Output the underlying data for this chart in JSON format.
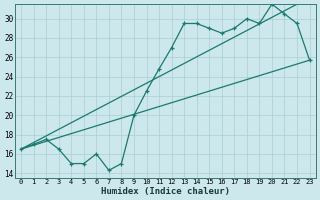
{
  "xlabel": "Humidex (Indice chaleur)",
  "bg_color": "#cce8ed",
  "grid_color": "#aacdd4",
  "line_color": "#1a7a6e",
  "xlim": [
    -0.5,
    23.5
  ],
  "ylim": [
    13.5,
    31.5
  ],
  "xticks": [
    0,
    1,
    2,
    3,
    4,
    5,
    6,
    7,
    8,
    9,
    10,
    11,
    12,
    13,
    14,
    15,
    16,
    17,
    18,
    19,
    20,
    21,
    22,
    23
  ],
  "yticks": [
    14,
    16,
    18,
    20,
    22,
    24,
    26,
    28,
    30
  ],
  "curve_x": [
    0,
    1,
    2,
    3,
    4,
    5,
    6,
    7,
    8,
    9,
    10,
    11,
    12,
    13,
    14,
    15,
    16,
    17,
    18,
    19,
    20,
    21,
    22,
    23
  ],
  "curve_y": [
    16.5,
    17.0,
    17.5,
    16.5,
    15.0,
    15.0,
    16.0,
    14.3,
    15.0,
    20.0,
    22.5,
    24.8,
    27.0,
    29.5,
    29.5,
    29.0,
    28.5,
    29.0,
    30.0,
    29.5,
    31.5,
    30.5,
    29.5,
    25.7
  ],
  "line1_x": [
    0,
    22
  ],
  "line1_y": [
    16.5,
    31.5
  ],
  "line2_x": [
    0,
    23
  ],
  "line2_y": [
    16.5,
    25.7
  ]
}
